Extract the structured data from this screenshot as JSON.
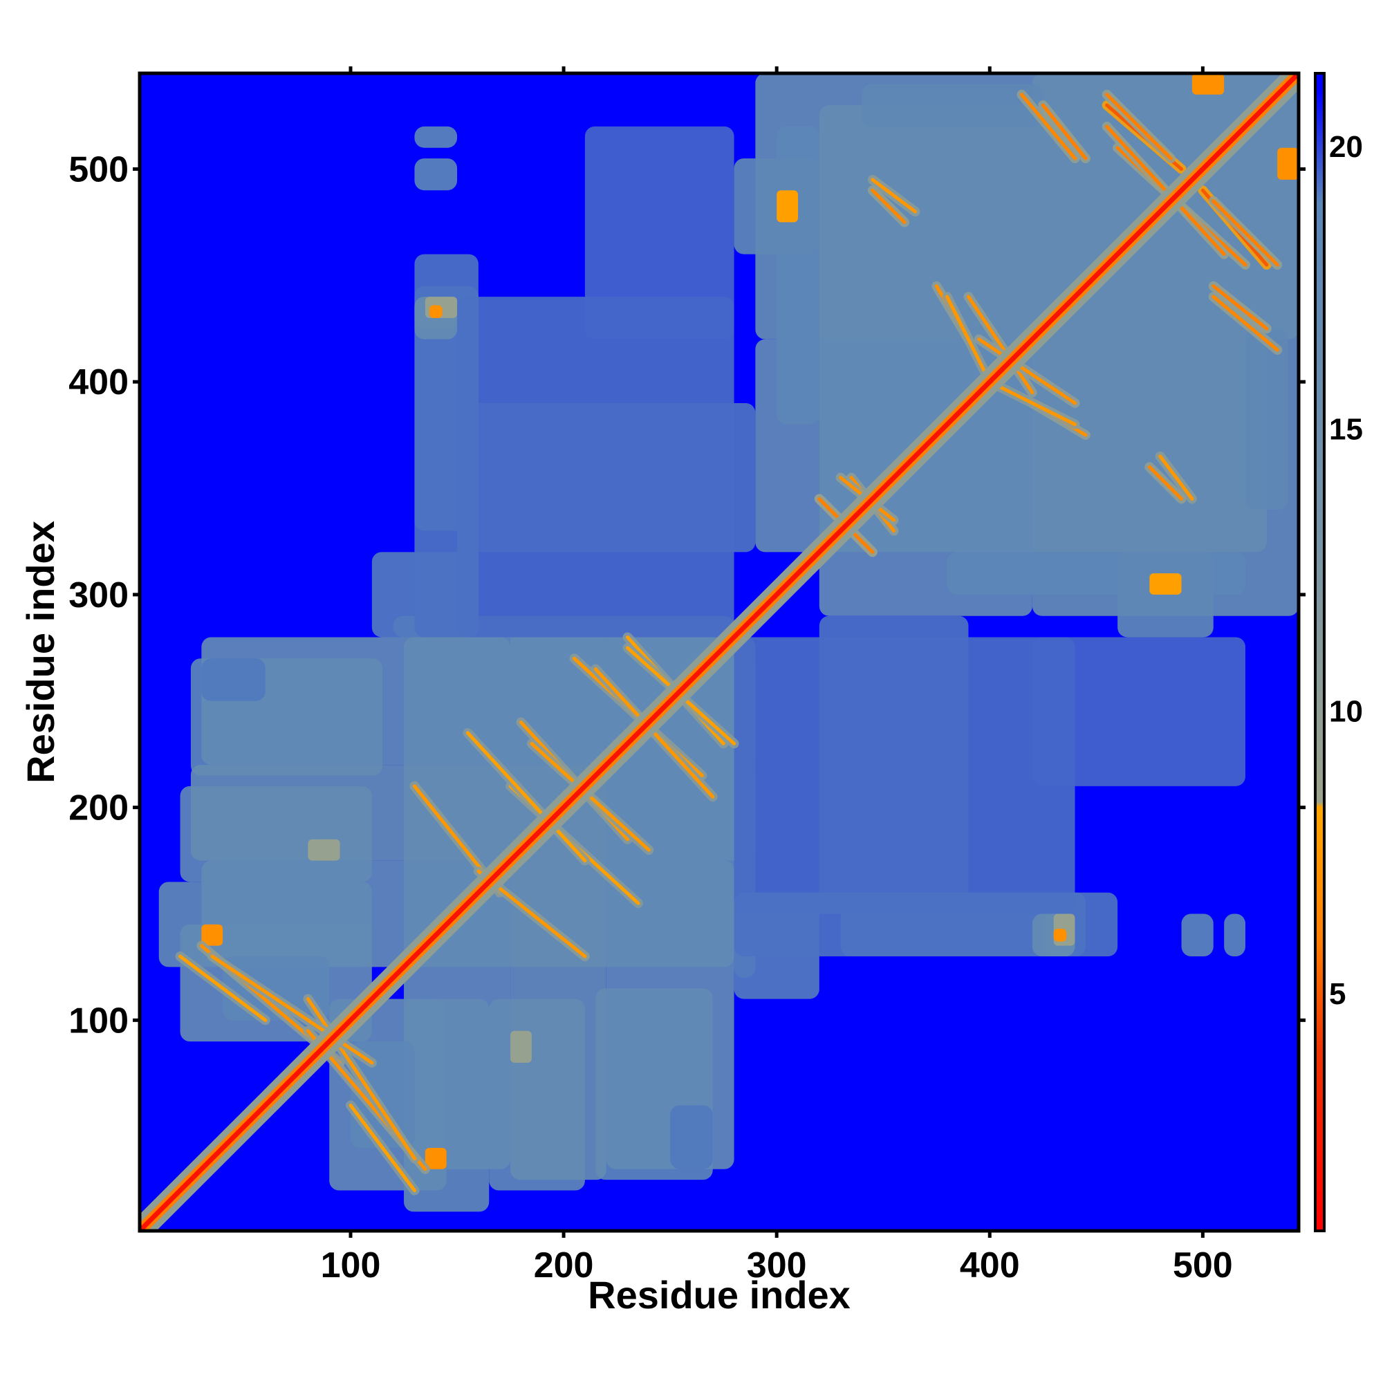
{
  "chart_data": {
    "type": "heatmap",
    "title": "",
    "xlabel": "Residue index",
    "ylabel": "Residue index",
    "xlim": [
      1,
      545
    ],
    "ylim": [
      1,
      545
    ],
    "x_ticks": [
      100,
      200,
      300,
      400,
      500
    ],
    "y_ticks": [
      100,
      200,
      300,
      400,
      500
    ],
    "x_tick_labels": [
      "100",
      "200",
      "300",
      "400",
      "500"
    ],
    "y_tick_labels": [
      "100",
      "200",
      "300",
      "400",
      "500"
    ],
    "colorbar": {
      "range": [
        0.8,
        21.3
      ],
      "ticks": [
        5,
        10,
        15,
        20
      ],
      "tick_labels": [
        "5",
        "10",
        "15",
        "20"
      ],
      "colors": [
        {
          "value": 0.8,
          "color": "#ff0000"
        },
        {
          "value": 4,
          "color": "#ee3300"
        },
        {
          "value": 6,
          "color": "#ff7f00"
        },
        {
          "value": 8.3,
          "color": "#ffa500"
        },
        {
          "value": 8.4,
          "color": "#9ca38c"
        },
        {
          "value": 13,
          "color": "#7894a6"
        },
        {
          "value": 19,
          "color": "#5a86b8"
        },
        {
          "value": 21,
          "color": "#0000ff"
        }
      ]
    },
    "grid": false,
    "background_value": 21,
    "background_color": "#0000ff",
    "domains": [
      {
        "name": "",
        "range": [
          1,
          285
        ]
      },
      {
        "name": "",
        "range": [
          285,
          545
        ]
      }
    ],
    "contact_regions": [
      {
        "x": [
          10,
          110
        ],
        "y": [
          125,
          165
        ],
        "value": 18
      },
      {
        "x": [
          20,
          110
        ],
        "y": [
          165,
          210
        ],
        "value": 18.5
      },
      {
        "x": [
          25,
          115
        ],
        "y": [
          215,
          270
        ],
        "value": 19
      },
      {
        "x": [
          125,
          175
        ],
        "y": [
          30,
          280
        ],
        "value": 17.5
      },
      {
        "x": [
          175,
          220
        ],
        "y": [
          25,
          290
        ],
        "value": 17
      },
      {
        "x": [
          220,
          280
        ],
        "y": [
          30,
          290
        ],
        "value": 17.5
      },
      {
        "x": [
          280,
          290
        ],
        "y": [
          120,
          270
        ],
        "value": 18.5
      },
      {
        "x": [
          90,
          145
        ],
        "y": [
          20,
          110
        ],
        "value": 17.5
      },
      {
        "x": [
          40,
          90
        ],
        "y": [
          100,
          130
        ],
        "value": 18.5
      },
      {
        "x": [
          320,
          420
        ],
        "y": [
          290,
          530
        ],
        "value": 17.5
      },
      {
        "x": [
          420,
          545
        ],
        "y": [
          290,
          545
        ],
        "value": 17
      },
      {
        "x": [
          300,
          320
        ],
        "y": [
          380,
          520
        ],
        "value": 18.5
      },
      {
        "x": [
          280,
          320
        ],
        "y": [
          460,
          505
        ],
        "value": 18
      },
      {
        "x": [
          340,
          425
        ],
        "y": [
          520,
          540
        ],
        "value": 18
      },
      {
        "x": [
          110,
          160
        ],
        "y": [
          280,
          320
        ],
        "value": 19.2
      },
      {
        "x": [
          150,
          290
        ],
        "y": [
          320,
          390
        ],
        "value": 19.3
      },
      {
        "x": [
          130,
          160
        ],
        "y": [
          330,
          445
        ],
        "value": 19.2
      },
      {
        "x": [
          280,
          440
        ],
        "y": [
          150,
          280
        ],
        "value": 19.4
      },
      {
        "x": [
          280,
          460
        ],
        "y": [
          130,
          160
        ],
        "value": 19.3
      },
      {
        "x": [
          420,
          520
        ],
        "y": [
          210,
          280
        ],
        "value": 19.5
      },
      {
        "x": [
          490,
          505
        ],
        "y": [
          130,
          150
        ],
        "value": 19
      },
      {
        "x": [
          425,
          440
        ],
        "y": [
          130,
          150
        ],
        "value": 16
      },
      {
        "x": [
          130,
          150
        ],
        "y": [
          510,
          520
        ],
        "value": 19
      },
      {
        "x": [
          130,
          150
        ],
        "y": [
          420,
          440
        ],
        "value": 17
      },
      {
        "x": [
          30,
          60
        ],
        "y": [
          250,
          270
        ],
        "value": 19.2
      }
    ],
    "diagonal_band": {
      "width": 3,
      "core_value": 2,
      "edge_value": 6
    },
    "contact_lines": [
      {
        "from": [
          30,
          135
        ],
        "to": [
          95,
          80
        ],
        "value": 7
      },
      {
        "from": [
          80,
          110
        ],
        "to": [
          130,
          35
        ],
        "value": 7.5
      },
      {
        "from": [
          20,
          130
        ],
        "to": [
          60,
          100
        ],
        "value": 8
      },
      {
        "from": [
          175,
          210
        ],
        "to": [
          235,
          155
        ],
        "value": 8
      },
      {
        "from": [
          180,
          240
        ],
        "to": [
          230,
          185
        ],
        "value": 7.5
      },
      {
        "from": [
          205,
          270
        ],
        "to": [
          265,
          215
        ],
        "value": 7.5
      },
      {
        "from": [
          230,
          280
        ],
        "to": [
          275,
          230
        ],
        "value": 8
      },
      {
        "from": [
          130,
          210
        ],
        "to": [
          170,
          160
        ],
        "value": 7.5
      },
      {
        "from": [
          320,
          345
        ],
        "to": [
          345,
          320
        ],
        "value": 6
      },
      {
        "from": [
          335,
          355
        ],
        "to": [
          355,
          330
        ],
        "value": 7
      },
      {
        "from": [
          390,
          440
        ],
        "to": [
          420,
          395
        ],
        "value": 7
      },
      {
        "from": [
          425,
          530
        ],
        "to": [
          445,
          505
        ],
        "value": 6
      },
      {
        "from": [
          455,
          530
        ],
        "to": [
          490,
          500
        ],
        "value": 5
      },
      {
        "from": [
          460,
          510
        ],
        "to": [
          520,
          455
        ],
        "value": 6
      },
      {
        "from": [
          505,
          485
        ],
        "to": [
          535,
          455
        ],
        "value": 6
      },
      {
        "from": [
          505,
          440
        ],
        "to": [
          535,
          415
        ],
        "value": 6.5
      },
      {
        "from": [
          475,
          360
        ],
        "to": [
          490,
          345
        ],
        "value": 6.5
      },
      {
        "from": [
          345,
          495
        ],
        "to": [
          365,
          480
        ],
        "value": 7.5
      },
      {
        "from": [
          420,
          390
        ],
        "to": [
          445,
          375
        ],
        "value": 7
      },
      {
        "from": [
          380,
          440
        ],
        "to": [
          400,
          400
        ],
        "value": 7.5
      }
    ],
    "spot_contacts": [
      {
        "x": [
          135,
          150
        ],
        "y": [
          430,
          440
        ],
        "value": 9
      },
      {
        "x": [
          80,
          95
        ],
        "y": [
          175,
          185
        ],
        "value": 9
      },
      {
        "x": [
          135,
          145
        ],
        "y": [
          30,
          40
        ],
        "value": 7
      },
      {
        "x": [
          495,
          510
        ],
        "y": [
          535,
          545
        ],
        "value": 7
      },
      {
        "x": [
          430,
          436
        ],
        "y": [
          137,
          143
        ],
        "value": 7
      },
      {
        "x": [
          475,
          490
        ],
        "y": [
          300,
          310
        ],
        "value": 8
      }
    ]
  }
}
